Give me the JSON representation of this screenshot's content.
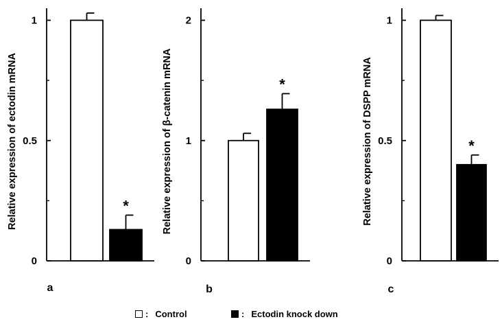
{
  "figure": {
    "legend": {
      "separator": ":",
      "items": [
        {
          "label": "Control",
          "fill": "#ffffff"
        },
        {
          "label": "Ectodin knock down",
          "fill": "#000000"
        }
      ]
    }
  },
  "chart_data": [
    {
      "type": "bar",
      "panel_label": "a",
      "ylabel": "Relative expression of ectodin mRNA",
      "ylim": [
        0,
        1.05
      ],
      "yticks": [
        {
          "value": 0,
          "label": "0"
        },
        {
          "value": 0.5,
          "label": "0.5"
        },
        {
          "value": 1,
          "label": "1"
        }
      ],
      "minor_ticks": [
        0.25,
        0.75
      ],
      "categories": [
        "Control",
        "Ectodin knock down"
      ],
      "values": [
        1.0,
        0.13
      ],
      "errors": [
        0.03,
        0.06
      ],
      "fills": [
        "#ffffff",
        "#000000"
      ],
      "annotations": [
        "",
        "*"
      ]
    },
    {
      "type": "bar",
      "panel_label": "b",
      "ylabel": "Relative expression of β-catenin mRNA",
      "ylim": [
        0,
        2.1
      ],
      "yticks": [
        {
          "value": 0,
          "label": "0"
        },
        {
          "value": 1,
          "label": "1"
        },
        {
          "value": 2,
          "label": "2"
        }
      ],
      "minor_ticks": [
        0.5,
        1.5
      ],
      "categories": [
        "Control",
        "Ectodin knock down"
      ],
      "values": [
        1.0,
        1.26
      ],
      "errors": [
        0.06,
        0.13
      ],
      "fills": [
        "#ffffff",
        "#000000"
      ],
      "annotations": [
        "",
        "*"
      ]
    },
    {
      "type": "bar",
      "panel_label": "c",
      "ylabel": "Relative expression of DSPP mRNA",
      "ylim": [
        0,
        1.05
      ],
      "yticks": [
        {
          "value": 0,
          "label": "0"
        },
        {
          "value": 0.5,
          "label": "0.5"
        },
        {
          "value": 1,
          "label": "1"
        }
      ],
      "minor_ticks": [
        0.25,
        0.75
      ],
      "categories": [
        "Control",
        "Ectodin knock down"
      ],
      "values": [
        1.0,
        0.4
      ],
      "errors": [
        0.02,
        0.04
      ],
      "fills": [
        "#ffffff",
        "#000000"
      ],
      "annotations": [
        "",
        "*"
      ]
    }
  ]
}
